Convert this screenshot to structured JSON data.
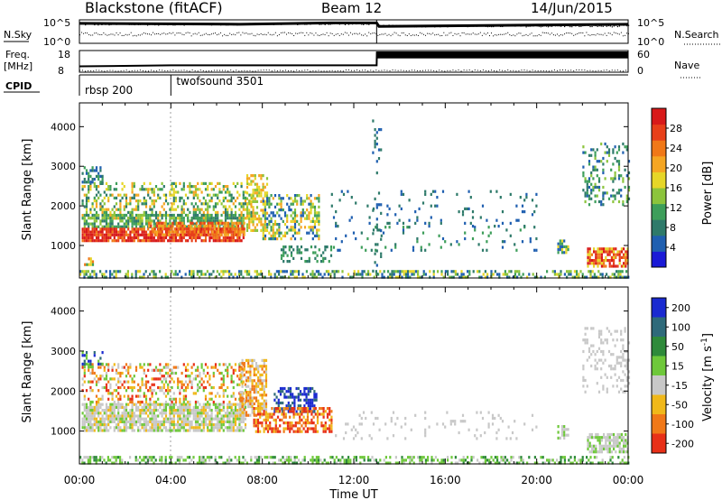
{
  "header": {
    "station": "Blackstone (fitACF)",
    "beam": "Beam 12",
    "date": "14/Jun/2015"
  },
  "panels": {
    "nsky": {
      "label": "N.Sky",
      "ticks_left": [
        "10^5",
        "10^0"
      ],
      "ticks_right": [
        "10^5",
        "10^0"
      ],
      "right_label": "N.Search"
    },
    "freq": {
      "label_line1": "Freq.",
      "label_line2": "[MHz]",
      "ticks_left": [
        "18",
        "8"
      ],
      "ticks_right": [
        "60",
        "0"
      ],
      "right_label": "Nave"
    },
    "cpid": {
      "label": "CPID",
      "segments": [
        {
          "name": "rbsp 200",
          "start_hour": 0.0
        },
        {
          "name": "twofsound 3501",
          "start_hour": 4.0
        }
      ]
    }
  },
  "x_axis": {
    "label": "Time UT",
    "ticks": [
      "00:00",
      "04:00",
      "08:00",
      "12:00",
      "16:00",
      "20:00",
      "00:00"
    ],
    "range_hours": [
      0,
      24
    ]
  },
  "y_axis": {
    "label": "Slant Range [km]",
    "ticks": [
      "1000",
      "2000",
      "3000",
      "4000"
    ],
    "range_km": [
      180,
      4600
    ]
  },
  "power_scale": {
    "label": "Power [dB]",
    "ticks": [
      "4",
      "8",
      "12",
      "16",
      "20",
      "24",
      "28"
    ],
    "colors": [
      "#1a1ad6",
      "#1f5fb0",
      "#2e7a6a",
      "#3d9e5a",
      "#8cc43c",
      "#e6d628",
      "#f5a623",
      "#f07818",
      "#e8401a",
      "#d81a1a"
    ]
  },
  "velocity_scale": {
    "label": "Velocity [m s^-1]",
    "ticks": [
      "200",
      "100",
      "50",
      "15",
      "-15",
      "-50",
      "-100",
      "-200"
    ],
    "colors": [
      "#1a2ad0",
      "#2e6a7a",
      "#2e8a3a",
      "#6ec83a",
      "#c8c8c8",
      "#f0b81a",
      "#f07818",
      "#e83018"
    ]
  },
  "chart_data": [
    {
      "type": "heatmap",
      "title": "Power",
      "xlabel": "Time UT",
      "ylabel": "Slant Range [km]",
      "x_range_hours": [
        0,
        24
      ],
      "y_range_km": [
        180,
        4600
      ],
      "colorbar": {
        "label": "Power [dB]",
        "range": [
          0,
          32
        ]
      },
      "features": [
        {
          "region": "main band",
          "hours": [
            0,
            7.3
          ],
          "range_km": [
            1050,
            1650
          ],
          "power_db": 28
        },
        {
          "region": "upper band",
          "hours": [
            0,
            7.5
          ],
          "range_km": [
            1700,
            2600
          ],
          "power_db": 16
        },
        {
          "region": "post-08 arc",
          "hours": [
            7.5,
            10.5
          ],
          "range_km": [
            1100,
            2300
          ],
          "power_db": 14
        },
        {
          "region": "ground band",
          "hours": [
            0,
            24
          ],
          "range_km": [
            200,
            400
          ],
          "power_db": 12
        },
        {
          "region": "evening patch",
          "hours": [
            21,
            24
          ],
          "range_km": [
            500,
            1200
          ],
          "power_db": 28
        }
      ]
    },
    {
      "type": "heatmap",
      "title": "Velocity",
      "xlabel": "Time UT",
      "ylabel": "Slant Range [km]",
      "x_range_hours": [
        0,
        24
      ],
      "y_range_km": [
        180,
        4600
      ],
      "colorbar": {
        "label": "Velocity [m s^-1]",
        "range": [
          -200,
          200
        ]
      },
      "features": [
        {
          "region": "main band",
          "hours": [
            0,
            7.3
          ],
          "range_km": [
            1050,
            1650
          ],
          "velocity_ms": 0
        },
        {
          "region": "receding arc",
          "hours": [
            8.5,
            10.5
          ],
          "range_km": [
            1500,
            2100
          ],
          "velocity_ms": 200
        },
        {
          "region": "approaching arc",
          "hours": [
            7.5,
            10.5
          ],
          "range_km": [
            1000,
            1600
          ],
          "velocity_ms": -150
        },
        {
          "region": "ground band",
          "hours": [
            0,
            24
          ],
          "range_km": [
            200,
            400
          ],
          "velocity_ms": 30
        }
      ]
    },
    {
      "type": "line",
      "title": "N.Sky / N.Search",
      "x_range_hours": [
        0,
        24
      ],
      "series": [
        {
          "name": "N.Sky",
          "x_hours": [
            0,
            7,
            11,
            13,
            13.1,
            24
          ],
          "y_log10": [
            4.4,
            4.2,
            4.5,
            4.5,
            3.7,
            4.2
          ]
        },
        {
          "name": "N.Search",
          "x_hours": [
            0,
            24
          ],
          "y_log10": [
            2.0,
            2.0
          ]
        }
      ]
    },
    {
      "type": "line",
      "title": "Freq / Nave",
      "x_range_hours": [
        0,
        24
      ],
      "series": [
        {
          "name": "Freq",
          "x_hours": [
            0,
            4,
            13,
            13.01,
            24
          ],
          "y_mhz": [
            10.5,
            11,
            11,
            17.5,
            17.5
          ]
        },
        {
          "name": "Nave",
          "x_hours": [
            0,
            24
          ],
          "y": [
            20,
            20
          ]
        }
      ]
    }
  ]
}
